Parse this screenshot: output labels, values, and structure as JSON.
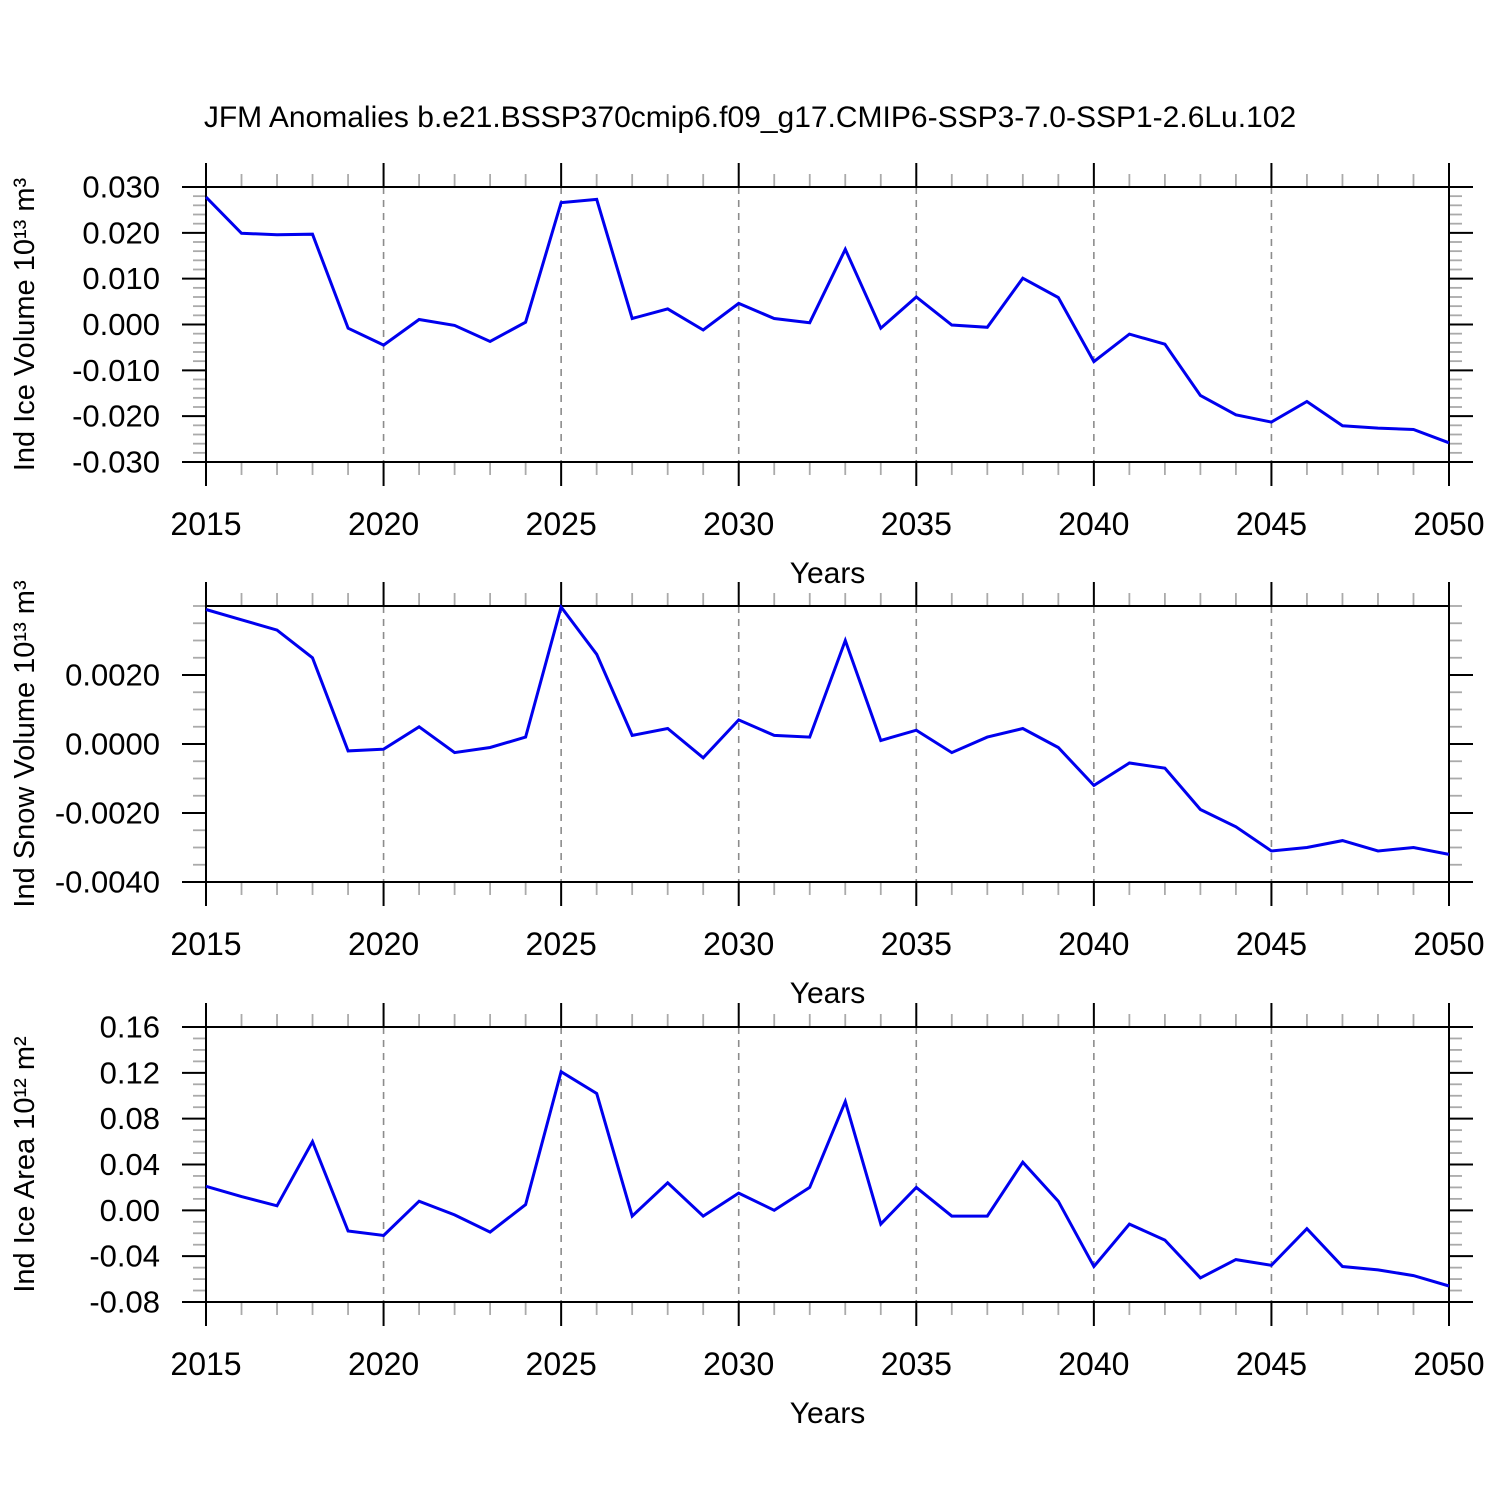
{
  "title": "JFM Anomalies b.e21.BSSP370cmip6.f09_g17.CMIP6-SSP3-7.0-SSP1-2.6Lu.102",
  "colors": {
    "line": "#0000ee",
    "axis": "#000000",
    "major_tick": "#000000",
    "minor_tick": "#aaaaaa",
    "gridline": "#8c8c8c",
    "background": "#ffffff"
  },
  "chart_data": [
    {
      "type": "line",
      "id": "ice-volume",
      "ylabel": "Ind Ice Volume 10¹³ m³",
      "xlabel": "Years",
      "x_start": 2015,
      "x_end": 2050,
      "years": [
        2015,
        2016,
        2017,
        2018,
        2019,
        2020,
        2021,
        2022,
        2023,
        2024,
        2025,
        2026,
        2027,
        2028,
        2029,
        2030,
        2031,
        2032,
        2033,
        2034,
        2035,
        2036,
        2037,
        2038,
        2039,
        2040,
        2041,
        2042,
        2043,
        2044,
        2045,
        2046,
        2047,
        2048,
        2049,
        2050
      ],
      "values": [
        0.0278,
        0.0199,
        0.0196,
        0.0197,
        -0.0008,
        -0.0045,
        0.0011,
        -0.0002,
        -0.0037,
        0.0005,
        0.0266,
        0.0273,
        0.0013,
        0.0034,
        -0.0012,
        0.0046,
        0.0013,
        0.0004,
        0.0164,
        -0.0008,
        0.006,
        -0.0001,
        -0.0006,
        0.0101,
        0.0059,
        -0.0081,
        -0.0021,
        -0.0043,
        -0.0155,
        -0.0197,
        -0.0213,
        -0.0168,
        -0.0221,
        -0.0226,
        -0.0229,
        -0.0258
      ],
      "ylim": [
        -0.03,
        0.03
      ],
      "ytick_values": [
        0.03,
        0.02,
        0.01,
        0.0,
        -0.01,
        -0.02,
        -0.03
      ],
      "ytick_labels": [
        "0.030",
        "0.020",
        "0.010",
        "0.000",
        "-0.010",
        "-0.020",
        "-0.030"
      ],
      "y_minor_step": 0.002,
      "x_tick_labels": [
        "2015",
        "2020",
        "2025",
        "2030",
        "2035",
        "2040",
        "2045",
        "2050"
      ],
      "gridlines_x": [
        2020,
        2025,
        2030,
        2035,
        2040,
        2045
      ],
      "grid": "vertical-dashed",
      "legend": "none"
    },
    {
      "type": "line",
      "id": "snow-volume",
      "ylabel": "Ind Snow Volume 10¹³ m³",
      "xlabel": "Years",
      "x_start": 2015,
      "x_end": 2050,
      "years": [
        2015,
        2016,
        2017,
        2018,
        2019,
        2020,
        2021,
        2022,
        2023,
        2024,
        2025,
        2026,
        2027,
        2028,
        2029,
        2030,
        2031,
        2032,
        2033,
        2034,
        2035,
        2036,
        2037,
        2038,
        2039,
        2040,
        2041,
        2042,
        2043,
        2044,
        2045,
        2046,
        2047,
        2048,
        2049,
        2050
      ],
      "values": [
        0.0039,
        0.0036,
        0.0033,
        0.0025,
        -0.0002,
        -0.00015,
        0.0005,
        -0.00025,
        -0.0001,
        0.0002,
        0.00397,
        0.0026,
        0.00025,
        0.00045,
        -0.0004,
        0.0007,
        0.00025,
        0.0002,
        0.003,
        0.0001,
        0.0004,
        -0.00025,
        0.0002,
        0.00045,
        -0.0001,
        -0.0012,
        -0.00055,
        -0.0007,
        -0.0019,
        -0.0024,
        -0.0031,
        -0.003,
        -0.0028,
        -0.0031,
        -0.003,
        -0.0032
      ],
      "ylim": [
        -0.004,
        0.004
      ],
      "ytick_values": [
        0.002,
        0.0,
        -0.002,
        -0.004
      ],
      "ytick_labels": [
        "0.0020",
        "0.0000",
        "-0.0020",
        "-0.0040"
      ],
      "y_minor_step": 0.0005,
      "x_tick_labels": [
        "2015",
        "2020",
        "2025",
        "2030",
        "2035",
        "2040",
        "2045",
        "2050"
      ],
      "gridlines_x": [
        2020,
        2025,
        2030,
        2035,
        2040,
        2045
      ],
      "grid": "vertical-dashed",
      "legend": "none"
    },
    {
      "type": "line",
      "id": "ice-area",
      "ylabel": "Ind Ice Area 10¹² m²",
      "xlabel": "Years",
      "x_start": 2015,
      "x_end": 2050,
      "years": [
        2015,
        2016,
        2017,
        2018,
        2019,
        2020,
        2021,
        2022,
        2023,
        2024,
        2025,
        2026,
        2027,
        2028,
        2029,
        2030,
        2031,
        2032,
        2033,
        2034,
        2035,
        2036,
        2037,
        2038,
        2039,
        2040,
        2041,
        2042,
        2043,
        2044,
        2045,
        2046,
        2047,
        2048,
        2049,
        2050
      ],
      "values": [
        0.021,
        0.012,
        0.004,
        0.06,
        -0.018,
        -0.022,
        0.008,
        -0.004,
        -0.019,
        0.005,
        0.121,
        0.102,
        -0.005,
        0.024,
        -0.005,
        0.015,
        0.0,
        0.02,
        0.095,
        -0.012,
        0.02,
        -0.005,
        -0.005,
        0.042,
        0.008,
        -0.049,
        -0.012,
        -0.026,
        -0.059,
        -0.043,
        -0.048,
        -0.016,
        -0.049,
        -0.052,
        -0.057,
        -0.066
      ],
      "ylim": [
        -0.08,
        0.16
      ],
      "ytick_values": [
        0.16,
        0.12,
        0.08,
        0.04,
        0.0,
        -0.04,
        -0.08
      ],
      "ytick_labels": [
        "0.16",
        "0.12",
        "0.08",
        "0.04",
        "0.00",
        "-0.04",
        "-0.08"
      ],
      "y_minor_step": 0.01,
      "x_tick_labels": [
        "2015",
        "2020",
        "2025",
        "2030",
        "2035",
        "2040",
        "2045",
        "2050"
      ],
      "gridlines_x": [
        2020,
        2025,
        2030,
        2035,
        2040,
        2045
      ],
      "grid": "vertical-dashed",
      "legend": "none"
    }
  ]
}
